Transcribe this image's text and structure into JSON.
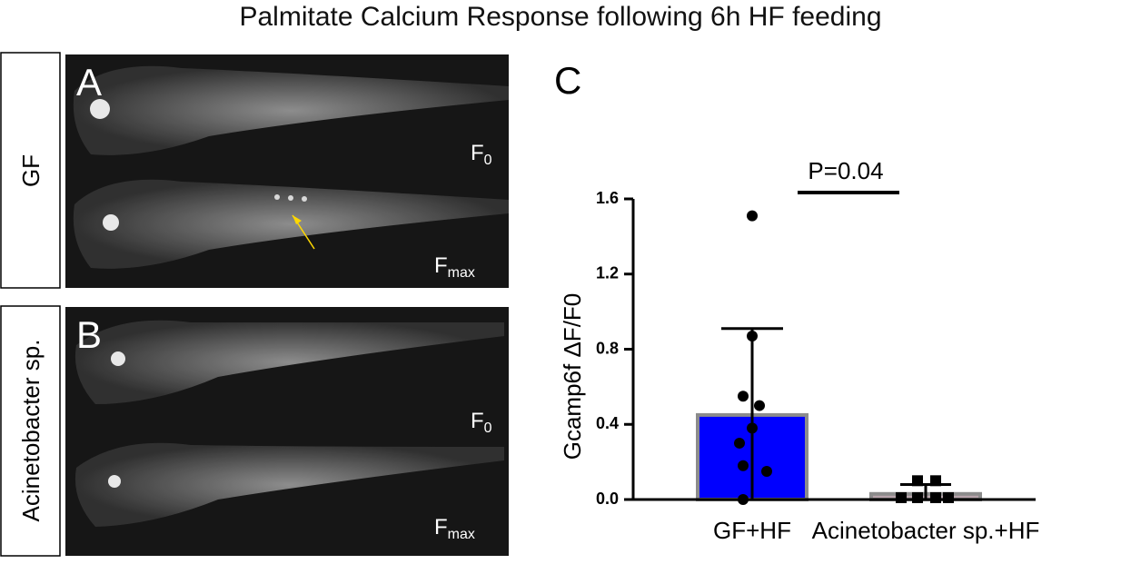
{
  "title": "Palmitate Calcium Response following 6h HF feeding",
  "panels": {
    "a": {
      "letter": "A",
      "group": "GF",
      "f0": {
        "main": "F",
        "sub": "0"
      },
      "fmax": {
        "main": "F",
        "sub": "max"
      }
    },
    "b": {
      "letter": "B",
      "group": "Acinetobacter sp.",
      "f0": {
        "main": "F",
        "sub": "0"
      },
      "fmax": {
        "main": "F",
        "sub": "max"
      }
    },
    "c": {
      "letter": "C"
    }
  },
  "chart_data": {
    "type": "bar",
    "y_label": "Gcamp6f ΔF/F0",
    "categories": [
      "GF+HF",
      "Acinetobacter sp.+HF"
    ],
    "values": [
      0.45,
      0.03
    ],
    "errors": [
      0.46,
      0.05
    ],
    "colors": [
      "#0000ff",
      "#b8a4ac"
    ],
    "edge_color": "#8c8c8c",
    "points": [
      [
        1.51,
        0.87,
        0.55,
        0.5,
        0.38,
        0.3,
        0.18,
        0.15,
        0.0
      ],
      [
        0.1,
        0.1,
        0.01,
        0.01,
        0.01,
        0.01
      ]
    ],
    "markers": [
      "circle",
      "square"
    ],
    "ylim": [
      0,
      1.6
    ],
    "yticks": [
      {
        "value": 0,
        "label": "0.0"
      },
      0.4,
      0.8,
      1.2,
      1.6
    ],
    "annotation": "P=0.04"
  }
}
